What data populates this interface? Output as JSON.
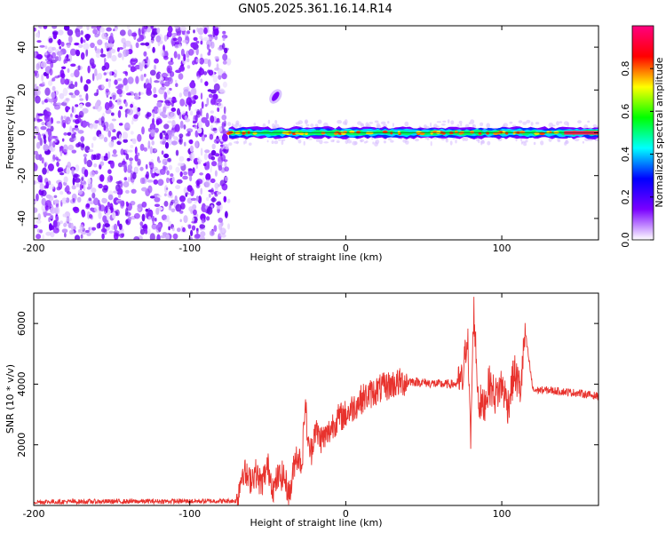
{
  "title": "GN05.2025.361.16.14.R14",
  "chart_data": [
    {
      "type": "heatmap",
      "name": "spectrogram",
      "xlabel": "Height of straight line (km)",
      "ylabel": "Frequency (Hz)",
      "xlim": [
        -200,
        162
      ],
      "ylim": [
        -50,
        50
      ],
      "xticks": [
        -200,
        -100,
        0,
        100
      ],
      "yticks": [
        -40,
        -20,
        0,
        20,
        40
      ],
      "noise_region_x": [
        -200,
        -75
      ],
      "signal_start_x": -75,
      "signal_track": {
        "freq_hz": 0,
        "secondary_blob": {
          "x": -45,
          "freq_hz": 17
        }
      },
      "colorbar": {
        "label": "Normalized spectral amplitude",
        "range": [
          0,
          1
        ],
        "ticks": [
          0.0,
          0.2,
          0.4,
          0.6,
          0.8
        ],
        "colors": [
          "#ffffff",
          "#7a00ff",
          "#0000ff",
          "#00ffff",
          "#00ff00",
          "#ffff00",
          "#ff0000",
          "#ff0080"
        ]
      }
    },
    {
      "type": "line",
      "name": "snr",
      "xlabel": "Height of straight line (km)",
      "ylabel": "SNR (10 * v/v)",
      "xlim": [
        -200,
        162
      ],
      "ylim": [
        0,
        7000
      ],
      "xticks": [
        -200,
        -100,
        0,
        100
      ],
      "yticks": [
        2000,
        4000,
        6000
      ],
      "color": "#e8322d",
      "x": [
        -200,
        -150,
        -100,
        -70,
        -66,
        -62,
        -58,
        -54,
        -50,
        -46,
        -44,
        -40,
        -36,
        -32,
        -28,
        -26,
        -24,
        -22,
        -20,
        -16,
        -12,
        -8,
        -4,
        0,
        10,
        20,
        30,
        40,
        50,
        60,
        70,
        75,
        78,
        80,
        82,
        85,
        88,
        92,
        96,
        100,
        104,
        108,
        112,
        115,
        120,
        130,
        140,
        150,
        162
      ],
      "y": [
        120,
        130,
        140,
        150,
        1200,
        800,
        1100,
        700,
        1300,
        500,
        900,
        1000,
        300,
        1700,
        1400,
        3500,
        1900,
        1800,
        2500,
        2200,
        2300,
        2700,
        2900,
        3000,
        3500,
        3800,
        4000,
        4100,
        4050,
        4000,
        4000,
        4100,
        5800,
        2000,
        6500,
        3500,
        3200,
        4000,
        3600,
        4000,
        3300,
        4400,
        3800,
        5700,
        3800,
        3800,
        3750,
        3700,
        3600
      ]
    }
  ]
}
